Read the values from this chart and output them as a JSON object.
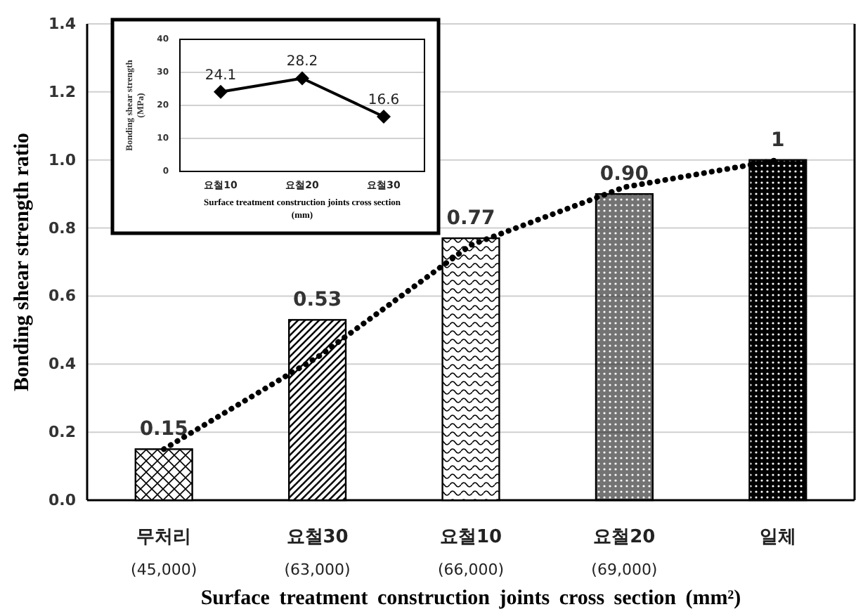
{
  "chart_data": [
    {
      "type": "bar",
      "xlabel": "Surface treatment  construction  joints cross section (mm²)",
      "ylabel": "Bonding shear strength ratio",
      "categories": [
        "무처리\n(45,000)",
        "요철30\n(63,000)",
        "요철10\n(66,000)",
        "요철20\n(69,000)",
        "일체"
      ],
      "ylim": [
        0,
        1.4
      ],
      "yticks": [
        {
          "value": 0,
          "label": "0.0"
        },
        {
          "value": 0.2,
          "label": "0.2"
        },
        {
          "value": 0.4,
          "label": "0.4"
        },
        {
          "value": 0.6,
          "label": "0.6"
        },
        {
          "value": 0.8,
          "label": "0.8"
        },
        {
          "value": 1,
          "label": "1.0"
        },
        {
          "value": 1.2,
          "label": "1.2"
        },
        {
          "value": 1.4,
          "label": "1.4"
        }
      ],
      "grid": "y",
      "series": [
        {
          "values": [
            0.15,
            0.53,
            0.77,
            0.9,
            1
          ],
          "colors": [
            "#000000",
            "#000000",
            "#000000",
            "#000000",
            "#000000"
          ],
          "value_labels": [
            "0.15",
            "0.53",
            "0.77",
            "0.90",
            "1"
          ]
        },
        {
          "type": "line",
          "values": [
            0.15,
            0.42,
            0.75,
            0.92,
            1.0
          ],
          "color": "#000000",
          "line_style": "dotted",
          "marker": "none"
        }
      ]
    },
    {
      "type": "line",
      "xlabel": "Surface treatment construction joints cross section (mm)",
      "ylabel": "Bonding shear strength (MPa)",
      "categories": [
        "요철10",
        "요철20",
        "요철30"
      ],
      "ylim": [
        0,
        40
      ],
      "yticks": [
        0,
        10,
        20,
        30,
        40
      ],
      "grid": "y",
      "marker": "diamond",
      "data_labels": true,
      "series": [
        {
          "values": [
            24.1,
            28.2,
            16.6
          ],
          "color": "#000000"
        }
      ]
    }
  ]
}
